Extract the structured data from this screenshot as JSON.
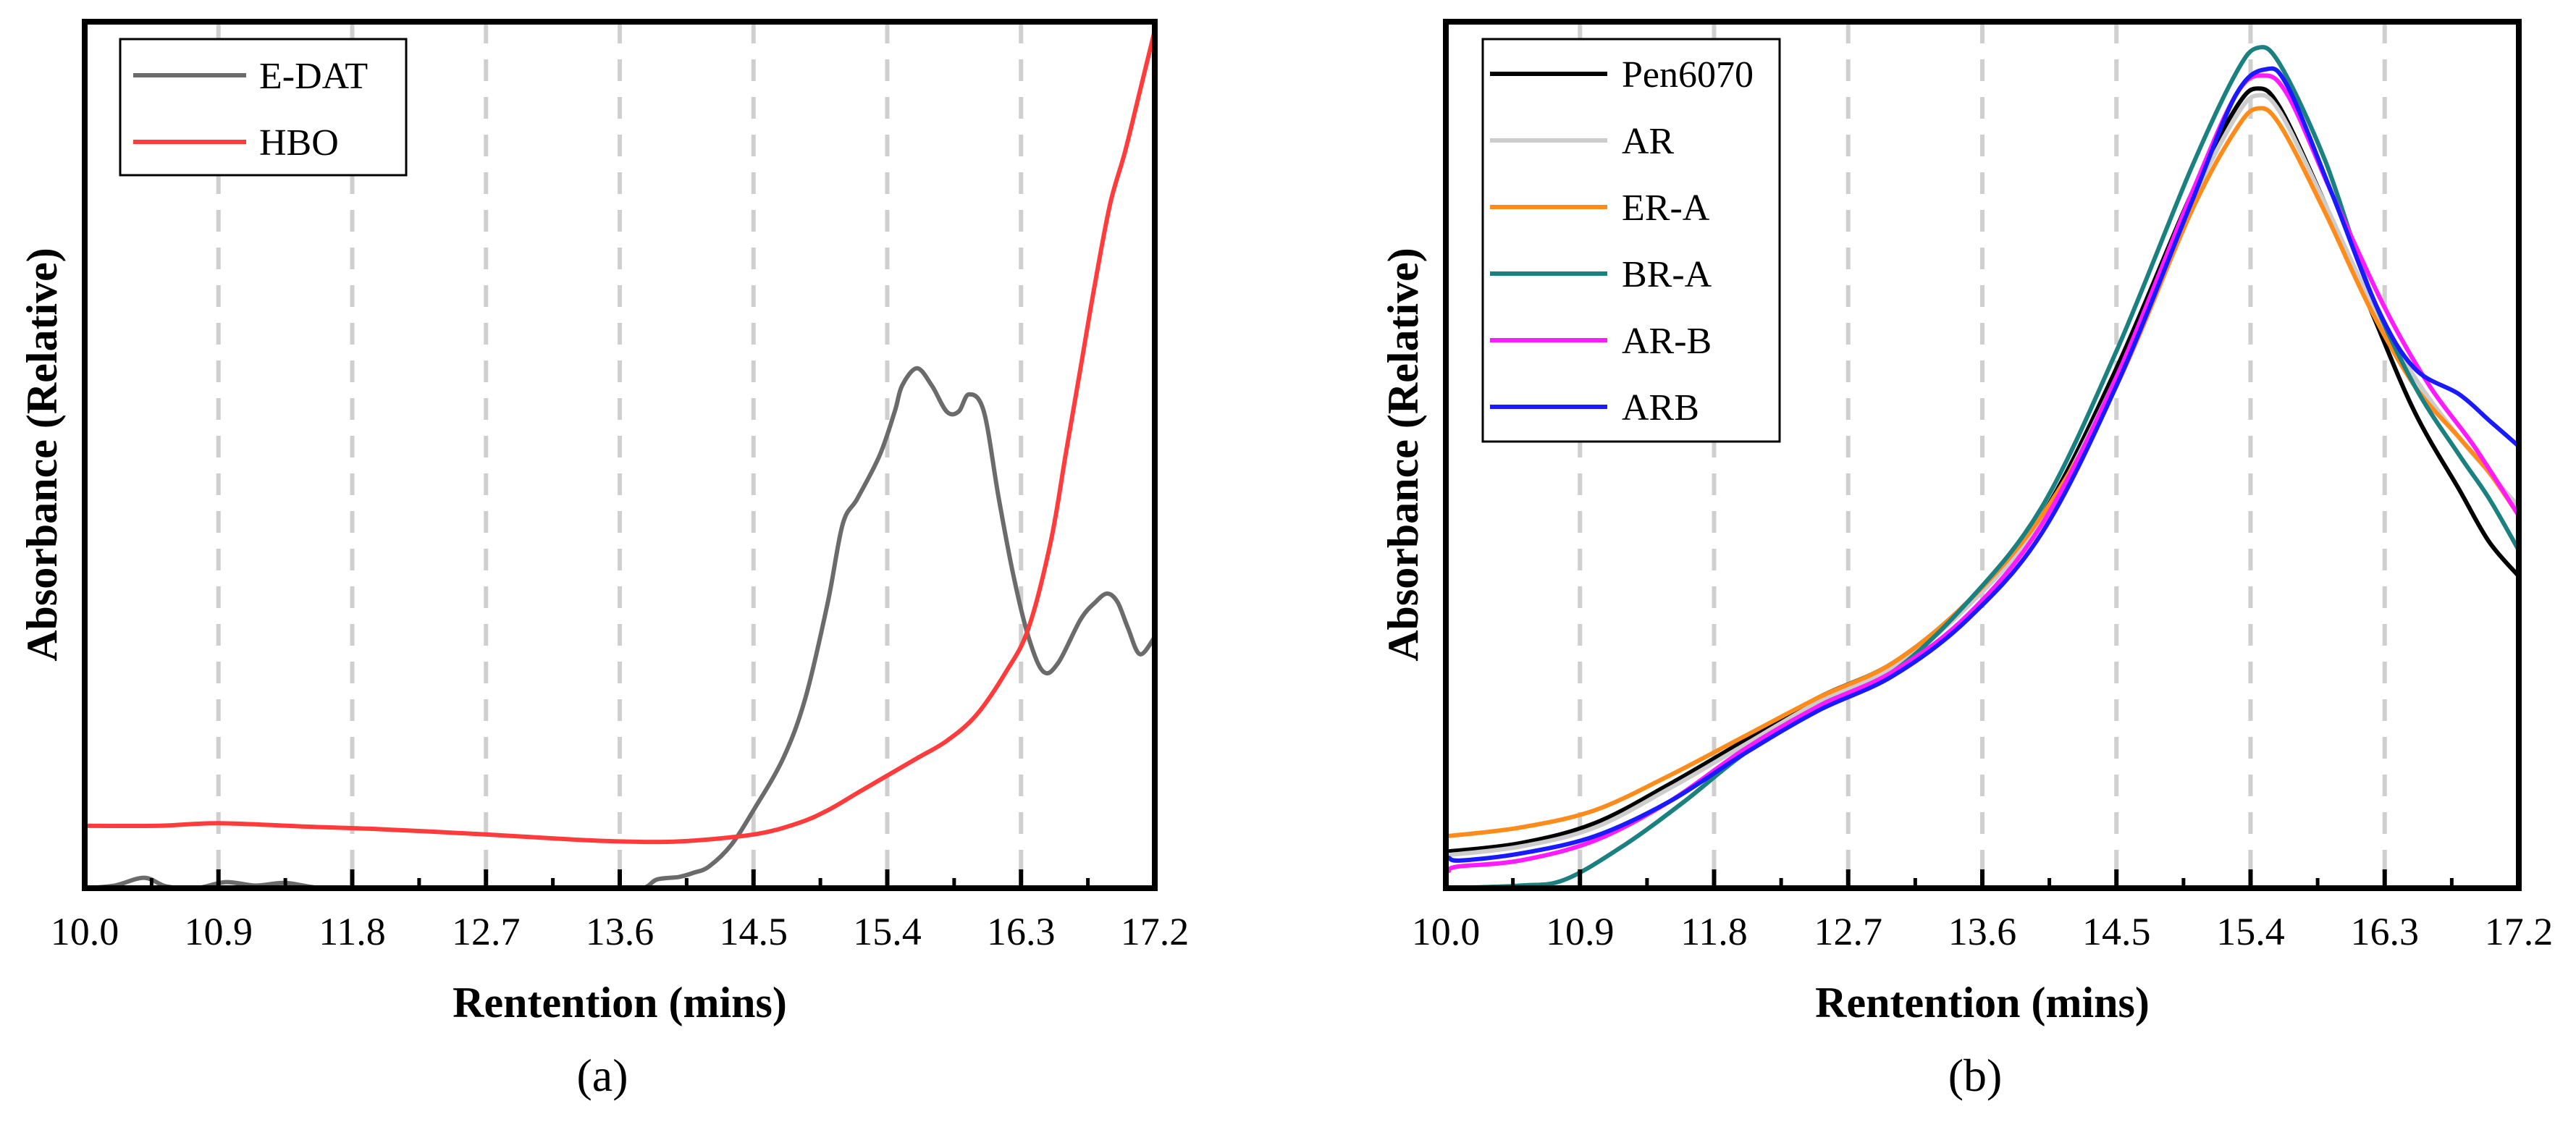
{
  "chart_data": [
    {
      "type": "line",
      "panel_label": "(a)",
      "xlabel": "Rentention (mins)",
      "ylabel": "Absorbance (Relative)",
      "xlim": [
        10.0,
        17.2
      ],
      "ylim": [
        0,
        1
      ],
      "x_ticks": [
        "10.0",
        "10.9",
        "11.8",
        "12.7",
        "13.6",
        "14.5",
        "15.4",
        "16.3",
        "17.2"
      ],
      "grid": "vertical dashed",
      "legend_position": "top-left",
      "series": [
        {
          "name": "E-DAT",
          "color": "#6b6b6b",
          "points": [
            [
              10.0,
              0.0
            ],
            [
              10.2,
              0.003
            ],
            [
              10.4,
              0.012
            ],
            [
              10.55,
              0.002
            ],
            [
              10.75,
              0.0
            ],
            [
              10.95,
              0.007
            ],
            [
              11.15,
              0.003
            ],
            [
              11.35,
              0.006
            ],
            [
              11.6,
              0.0
            ],
            [
              12.0,
              0.0
            ],
            [
              12.5,
              0.0
            ],
            [
              13.0,
              0.0
            ],
            [
              13.5,
              0.0
            ],
            [
              13.75,
              0.0
            ],
            [
              13.85,
              0.01
            ],
            [
              14.0,
              0.013
            ],
            [
              14.1,
              0.018
            ],
            [
              14.2,
              0.025
            ],
            [
              14.35,
              0.05
            ],
            [
              14.5,
              0.09
            ],
            [
              14.7,
              0.15
            ],
            [
              14.85,
              0.22
            ],
            [
              15.0,
              0.33
            ],
            [
              15.1,
              0.42
            ],
            [
              15.2,
              0.45
            ],
            [
              15.35,
              0.5
            ],
            [
              15.45,
              0.55
            ],
            [
              15.5,
              0.58
            ],
            [
              15.6,
              0.6
            ],
            [
              15.7,
              0.58
            ],
            [
              15.8,
              0.55
            ],
            [
              15.88,
              0.55
            ],
            [
              15.95,
              0.57
            ],
            [
              16.05,
              0.55
            ],
            [
              16.15,
              0.45
            ],
            [
              16.25,
              0.36
            ],
            [
              16.35,
              0.29
            ],
            [
              16.45,
              0.25
            ],
            [
              16.55,
              0.26
            ],
            [
              16.7,
              0.31
            ],
            [
              16.8,
              0.33
            ],
            [
              16.88,
              0.34
            ],
            [
              16.95,
              0.33
            ],
            [
              17.02,
              0.3
            ],
            [
              17.1,
              0.27
            ],
            [
              17.2,
              0.29
            ]
          ]
        },
        {
          "name": "HBO",
          "color": "#ff3b3b",
          "points": [
            [
              10.0,
              0.072
            ],
            [
              10.5,
              0.072
            ],
            [
              10.9,
              0.075
            ],
            [
              11.5,
              0.071
            ],
            [
              12.0,
              0.068
            ],
            [
              12.7,
              0.062
            ],
            [
              13.2,
              0.057
            ],
            [
              13.6,
              0.054
            ],
            [
              14.0,
              0.054
            ],
            [
              14.5,
              0.062
            ],
            [
              14.8,
              0.075
            ],
            [
              15.0,
              0.09
            ],
            [
              15.2,
              0.11
            ],
            [
              15.4,
              0.13
            ],
            [
              15.6,
              0.15
            ],
            [
              15.8,
              0.17
            ],
            [
              16.0,
              0.2
            ],
            [
              16.2,
              0.25
            ],
            [
              16.35,
              0.3
            ],
            [
              16.5,
              0.4
            ],
            [
              16.6,
              0.5
            ],
            [
              16.7,
              0.6
            ],
            [
              16.8,
              0.7
            ],
            [
              16.9,
              0.79
            ],
            [
              17.0,
              0.85
            ],
            [
              17.1,
              0.92
            ],
            [
              17.2,
              0.99
            ]
          ]
        }
      ]
    },
    {
      "type": "line",
      "panel_label": "(b)",
      "xlabel": "Rentention (mins)",
      "ylabel": "Absorbance (Relative)",
      "xlim": [
        10.0,
        17.2
      ],
      "ylim": [
        0,
        1
      ],
      "x_ticks": [
        "10.0",
        "10.9",
        "11.8",
        "12.7",
        "13.6",
        "14.5",
        "15.4",
        "16.3",
        "17.2"
      ],
      "grid": "vertical dashed",
      "legend_position": "top-left",
      "series": [
        {
          "name": "Pen6070",
          "color": "#000000",
          "points": [
            [
              10.0,
              0.042
            ],
            [
              10.5,
              0.052
            ],
            [
              11.0,
              0.075
            ],
            [
              11.5,
              0.12
            ],
            [
              12.0,
              0.17
            ],
            [
              12.5,
              0.22
            ],
            [
              13.0,
              0.26
            ],
            [
              13.5,
              0.33
            ],
            [
              14.0,
              0.43
            ],
            [
              14.5,
              0.6
            ],
            [
              15.0,
              0.8
            ],
            [
              15.3,
              0.9
            ],
            [
              15.45,
              0.923
            ],
            [
              15.6,
              0.9
            ],
            [
              15.9,
              0.79
            ],
            [
              16.2,
              0.67
            ],
            [
              16.5,
              0.55
            ],
            [
              16.8,
              0.46
            ],
            [
              17.0,
              0.4
            ],
            [
              17.2,
              0.36
            ]
          ]
        },
        {
          "name": "AR",
          "color": "#cccccc",
          "points": [
            [
              10.0,
              0.038
            ],
            [
              10.5,
              0.048
            ],
            [
              11.0,
              0.07
            ],
            [
              11.5,
              0.115
            ],
            [
              12.0,
              0.165
            ],
            [
              12.5,
              0.215
            ],
            [
              13.0,
              0.255
            ],
            [
              13.5,
              0.325
            ],
            [
              14.0,
              0.425
            ],
            [
              14.5,
              0.59
            ],
            [
              15.0,
              0.79
            ],
            [
              15.3,
              0.89
            ],
            [
              15.45,
              0.915
            ],
            [
              15.6,
              0.895
            ],
            [
              15.9,
              0.79
            ],
            [
              16.2,
              0.68
            ],
            [
              16.5,
              0.59
            ],
            [
              16.8,
              0.52
            ],
            [
              17.0,
              0.48
            ],
            [
              17.2,
              0.44
            ]
          ]
        },
        {
          "name": "ER-A",
          "color": "#ff8c1a",
          "points": [
            [
              10.0,
              0.06
            ],
            [
              10.5,
              0.07
            ],
            [
              11.0,
              0.09
            ],
            [
              11.5,
              0.13
            ],
            [
              12.0,
              0.175
            ],
            [
              12.5,
              0.22
            ],
            [
              13.0,
              0.26
            ],
            [
              13.5,
              0.33
            ],
            [
              14.0,
              0.43
            ],
            [
              14.5,
              0.58
            ],
            [
              15.0,
              0.78
            ],
            [
              15.3,
              0.875
            ],
            [
              15.45,
              0.9
            ],
            [
              15.6,
              0.88
            ],
            [
              15.9,
              0.78
            ],
            [
              16.2,
              0.67
            ],
            [
              16.5,
              0.58
            ],
            [
              16.8,
              0.52
            ],
            [
              17.0,
              0.48
            ],
            [
              17.2,
              0.43
            ]
          ]
        },
        {
          "name": "BR-A",
          "color": "#1a8080",
          "points": [
            [
              10.0,
              0.0
            ],
            [
              10.5,
              0.003
            ],
            [
              10.8,
              0.01
            ],
            [
              11.2,
              0.05
            ],
            [
              11.6,
              0.1
            ],
            [
              12.0,
              0.155
            ],
            [
              12.5,
              0.21
            ],
            [
              13.0,
              0.25
            ],
            [
              13.5,
              0.33
            ],
            [
              14.0,
              0.44
            ],
            [
              14.5,
              0.62
            ],
            [
              15.0,
              0.83
            ],
            [
              15.3,
              0.94
            ],
            [
              15.45,
              0.97
            ],
            [
              15.6,
              0.95
            ],
            [
              15.9,
              0.84
            ],
            [
              16.2,
              0.69
            ],
            [
              16.5,
              0.58
            ],
            [
              16.8,
              0.5
            ],
            [
              17.0,
              0.45
            ],
            [
              17.2,
              0.39
            ]
          ]
        },
        {
          "name": "AR-B",
          "color": "#ff1aff",
          "points": [
            [
              10.02,
              0.02
            ],
            [
              10.08,
              0.025
            ],
            [
              10.5,
              0.032
            ],
            [
              11.0,
              0.055
            ],
            [
              11.5,
              0.1
            ],
            [
              12.0,
              0.16
            ],
            [
              12.5,
              0.21
            ],
            [
              13.0,
              0.25
            ],
            [
              13.5,
              0.315
            ],
            [
              14.0,
              0.42
            ],
            [
              14.5,
              0.59
            ],
            [
              15.0,
              0.8
            ],
            [
              15.3,
              0.915
            ],
            [
              15.48,
              0.938
            ],
            [
              15.65,
              0.915
            ],
            [
              15.95,
              0.8
            ],
            [
              16.3,
              0.67
            ],
            [
              16.6,
              0.58
            ],
            [
              16.9,
              0.51
            ],
            [
              17.2,
              0.43
            ]
          ]
        },
        {
          "name": "ARB",
          "color": "#1a1aff",
          "points": [
            [
              10.02,
              0.035
            ],
            [
              10.1,
              0.032
            ],
            [
              10.5,
              0.04
            ],
            [
              11.0,
              0.06
            ],
            [
              11.5,
              0.1
            ],
            [
              12.0,
              0.155
            ],
            [
              12.5,
              0.205
            ],
            [
              13.0,
              0.245
            ],
            [
              13.5,
              0.31
            ],
            [
              14.0,
              0.41
            ],
            [
              14.5,
              0.58
            ],
            [
              15.0,
              0.79
            ],
            [
              15.3,
              0.915
            ],
            [
              15.5,
              0.945
            ],
            [
              15.65,
              0.925
            ],
            [
              15.95,
              0.8
            ],
            [
              16.25,
              0.67
            ],
            [
              16.5,
              0.6
            ],
            [
              16.8,
              0.57
            ],
            [
              17.0,
              0.54
            ],
            [
              17.2,
              0.51
            ]
          ]
        }
      ]
    }
  ]
}
